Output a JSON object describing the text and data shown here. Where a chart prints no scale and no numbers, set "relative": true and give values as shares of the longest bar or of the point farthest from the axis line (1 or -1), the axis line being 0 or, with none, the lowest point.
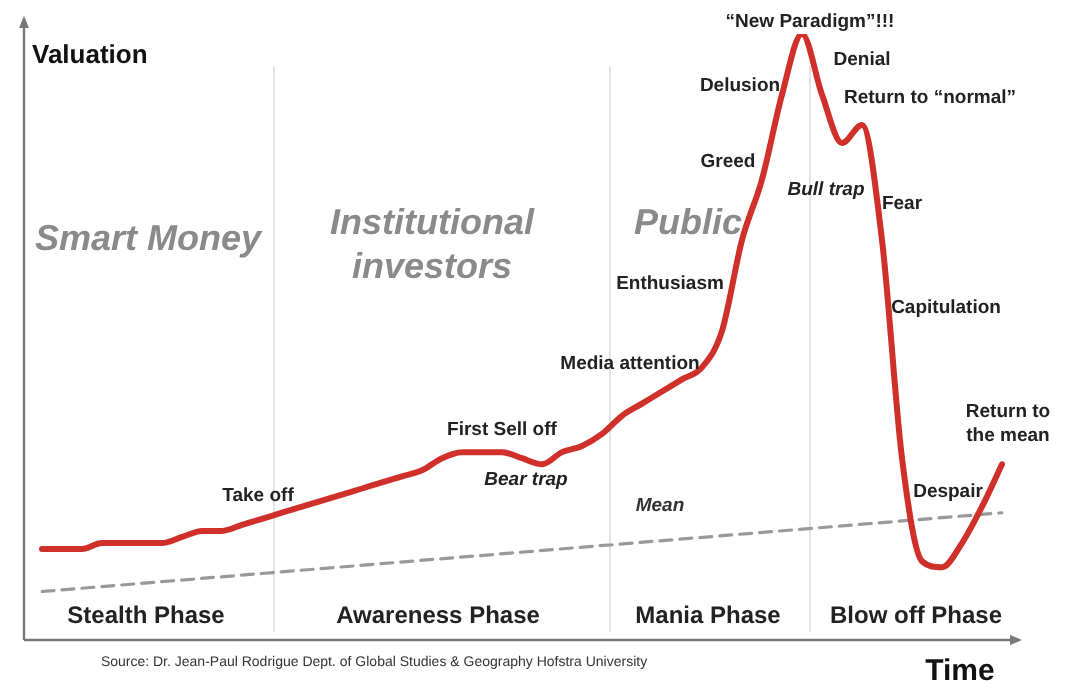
{
  "chart_data": {
    "type": "line",
    "relative": true,
    "xlabel": "Time",
    "ylabel": "Valuation",
    "marker": "none",
    "categories": [
      null,
      null,
      null,
      null,
      null,
      null,
      null,
      null,
      null,
      null,
      null,
      null,
      null,
      null,
      null,
      null,
      null,
      null,
      null,
      null,
      null,
      null,
      null,
      null,
      null,
      null,
      null,
      null,
      null,
      null,
      null,
      null,
      null,
      null,
      null,
      null,
      null,
      null,
      null,
      null,
      null,
      null,
      null,
      null,
      null,
      null,
      null,
      null,
      null
    ],
    "series": [
      {
        "color": "#d0302a",
        "line_style": "solid",
        "values": [
          0.15,
          0.15,
          0.15,
          0.16,
          0.16,
          0.16,
          0.16,
          0.17,
          0.18,
          0.18,
          0.19,
          0.2,
          0.21,
          0.22,
          0.23,
          0.24,
          0.25,
          0.26,
          0.27,
          0.28,
          0.3,
          0.31,
          0.31,
          0.31,
          0.3,
          0.29,
          0.31,
          0.32,
          0.34,
          0.37,
          0.39,
          0.41,
          0.43,
          0.45,
          0.51,
          0.66,
          0.76,
          0.9,
          1,
          0.9,
          0.82,
          0.85,
          0.66,
          0.3,
          0.13,
          0.12,
          0.16,
          0.22,
          0.29
        ]
      },
      {
        "name": "Mean",
        "color": "#999999",
        "line_style": "dashed",
        "values": [
          0.08,
          null,
          null,
          null,
          null,
          null,
          null,
          null,
          null,
          null,
          null,
          null,
          null,
          null,
          null,
          null,
          null,
          null,
          null,
          null,
          null,
          null,
          null,
          null,
          null,
          null,
          null,
          null,
          null,
          null,
          null,
          null,
          null,
          null,
          null,
          null,
          null,
          null,
          null,
          null,
          null,
          null,
          null,
          null,
          null,
          null,
          null,
          null,
          0.21
        ]
      }
    ],
    "annotations": [
      "Smart Money",
      "Institutional\ninvestors",
      "Public",
      "Stealth Phase",
      "Awareness Phase",
      "Mania Phase",
      "Blow off Phase",
      "Take off",
      "First Sell off",
      "Bear trap",
      "Media attention",
      "Enthusiasm",
      "Greed",
      "Delusion",
      "“New Paradigm”!!!",
      "Denial",
      "Return to “normal”",
      "Bull trap",
      "Fear",
      "Capitulation",
      "Despair",
      "Return to\nthe mean",
      "Source: Dr. Jean-Paul Rodrigue Dept. of Global Studies & Geography Hofstra University"
    ]
  }
}
